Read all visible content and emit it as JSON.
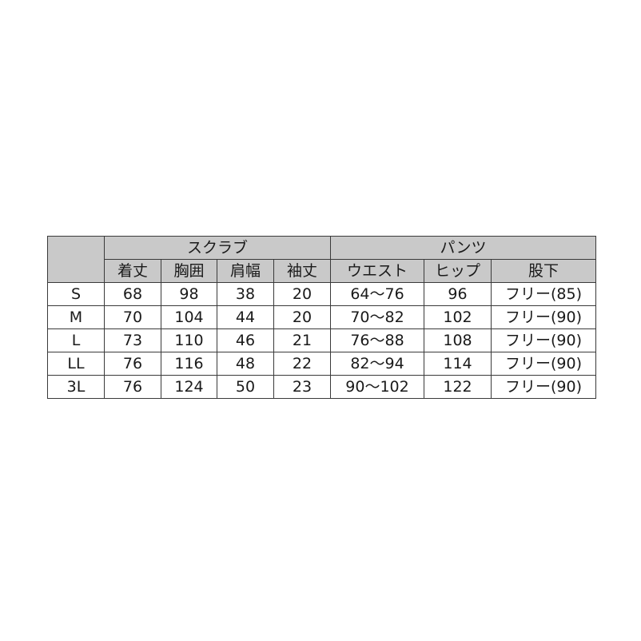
{
  "groups": {
    "scrubs": "スクラブ",
    "pants": "パンツ"
  },
  "columns": [
    "着丈",
    "胸囲",
    "肩幅",
    "袖丈",
    "ウエスト",
    "ヒップ",
    "股下"
  ],
  "rows": [
    {
      "size": "S",
      "values": [
        "68",
        "98",
        "38",
        "20",
        "64〜76",
        "96",
        "フリー(85)"
      ]
    },
    {
      "size": "M",
      "values": [
        "70",
        "104",
        "44",
        "20",
        "70〜82",
        "102",
        "フリー(90)"
      ]
    },
    {
      "size": "L",
      "values": [
        "73",
        "110",
        "46",
        "21",
        "76〜88",
        "108",
        "フリー(90)"
      ]
    },
    {
      "size": "LL",
      "values": [
        "76",
        "116",
        "48",
        "22",
        "82〜94",
        "114",
        "フリー(90)"
      ]
    },
    {
      "size": "3L",
      "values": [
        "76",
        "124",
        "50",
        "23",
        "90〜102",
        "122",
        "フリー(90)"
      ]
    }
  ]
}
